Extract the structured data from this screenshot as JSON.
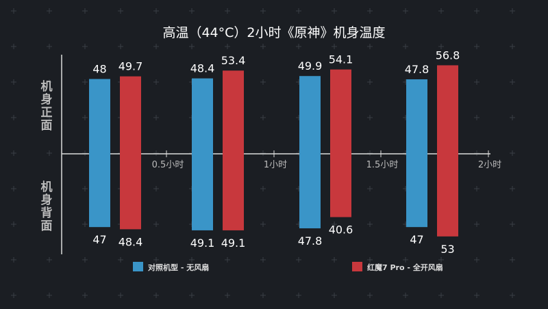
{
  "chart_data": {
    "type": "bar",
    "title": "高温（44°C）2小时《原神》机身温度",
    "ylabel_top": "机身正面",
    "ylabel_bottom": "机身背面",
    "x_ticks": [
      "0.5小时",
      "1小时",
      "1.5小时",
      "2小时"
    ],
    "series": [
      {
        "name": "对照机型 - 无风扇",
        "color": "#3a95c8",
        "front": [
          48,
          48.4,
          49.9,
          47.8
        ],
        "back": [
          47,
          49.1,
          47.8,
          47
        ]
      },
      {
        "name": "红魔7 Pro - 全开风扇",
        "color": "#c8383d",
        "front": [
          49.7,
          53.4,
          54.1,
          56.8
        ],
        "back": [
          48.4,
          49.1,
          40.6,
          53
        ]
      }
    ],
    "legend_position": "bottom"
  }
}
